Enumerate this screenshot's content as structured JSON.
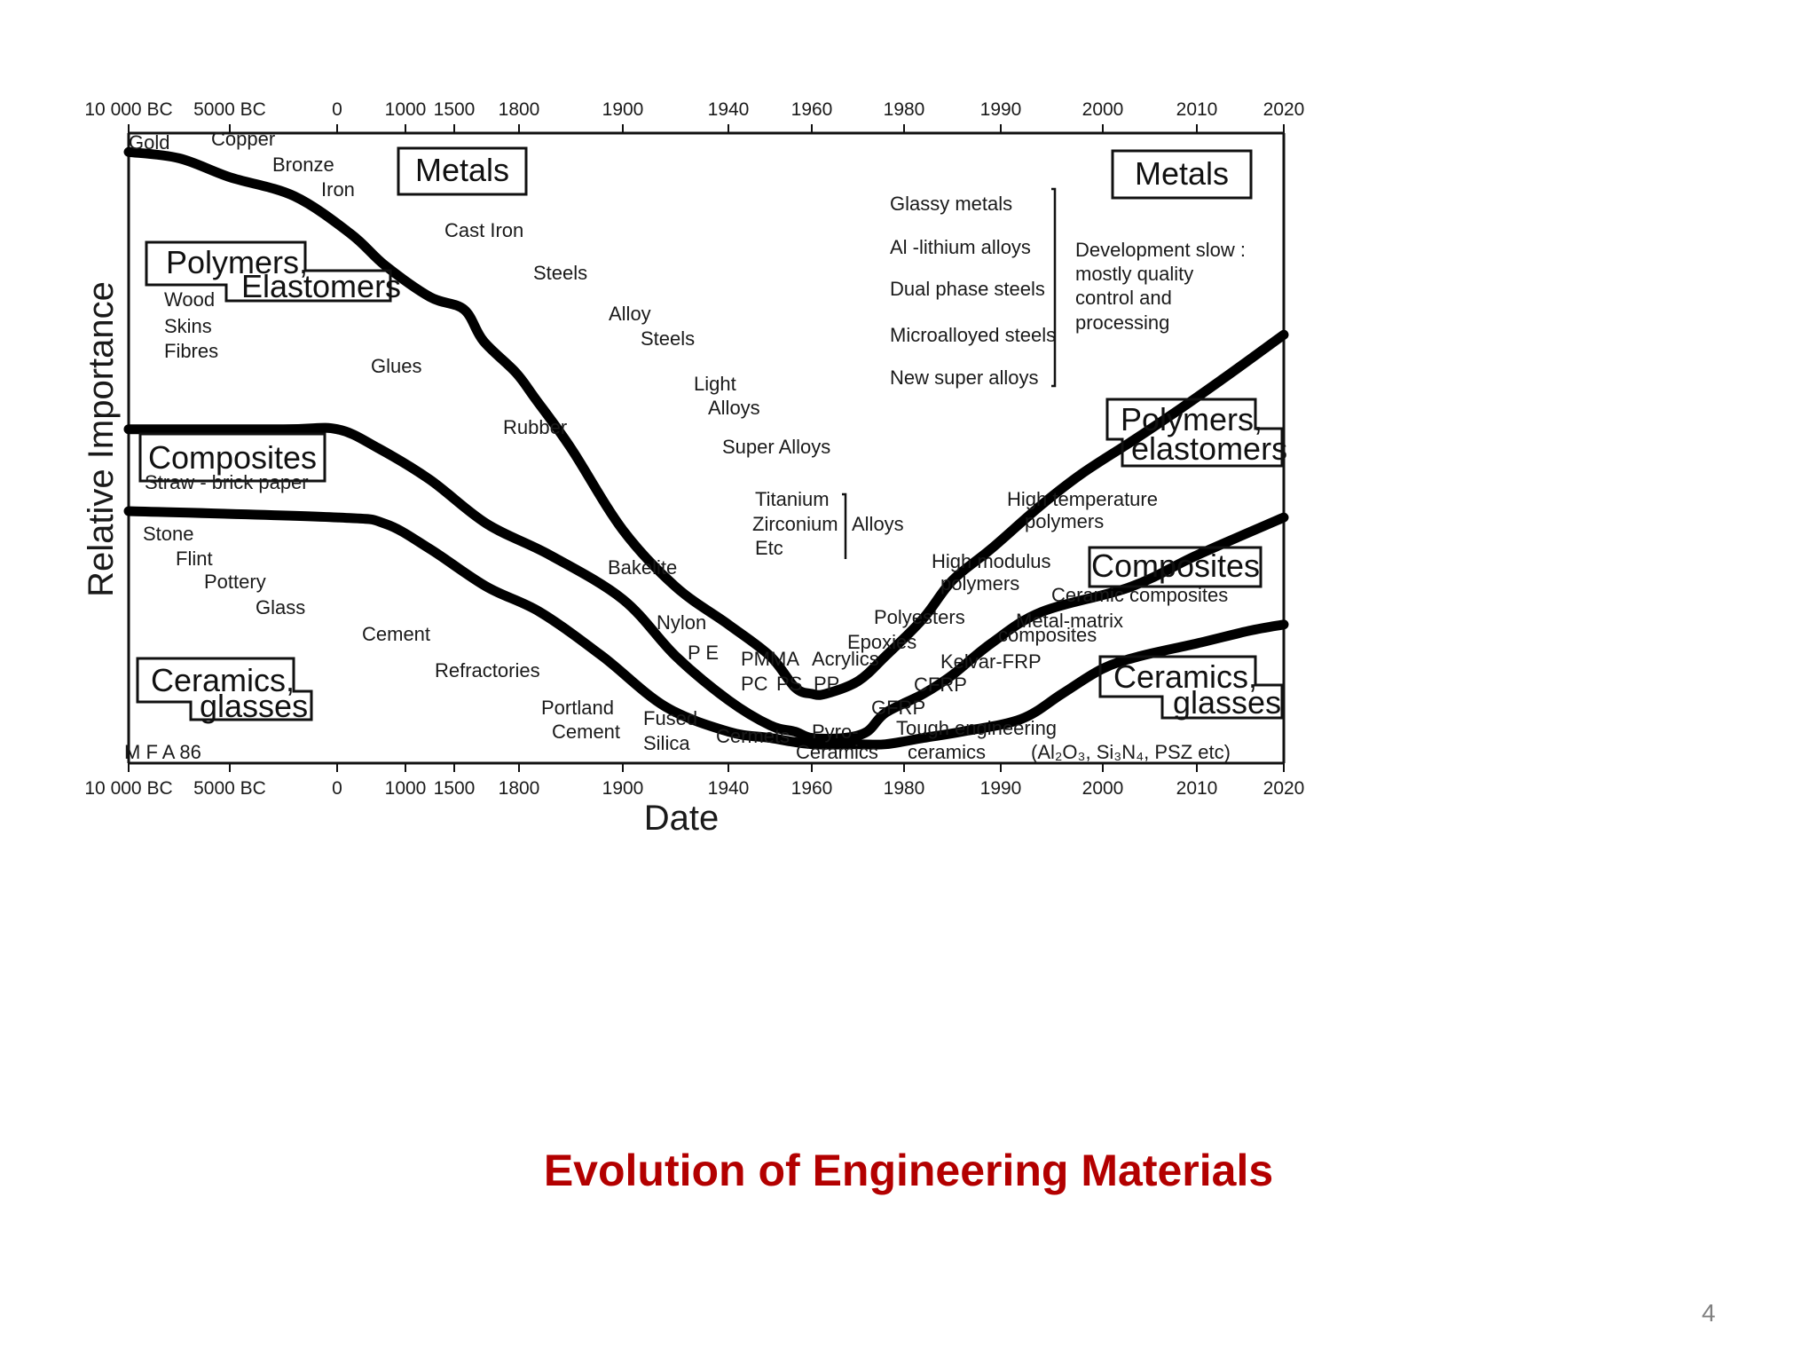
{
  "caption": "Evolution of Engineering Materials",
  "page_number": "4",
  "chart_data": {
    "type": "area",
    "title": "",
    "xlabel": "Date",
    "ylabel": "Relative Importance",
    "x_ticks": [
      "10 000 BC",
      "5000 BC",
      "0",
      "1000",
      "1500",
      "1800",
      "1900",
      "1940",
      "1960",
      "1980",
      "1990",
      "2000",
      "2010",
      "2020"
    ],
    "ylim": [
      0,
      100
    ],
    "grid": false,
    "note": "M F A 86",
    "categories": [
      "Metals",
      "Polymers, elastomers",
      "Composites",
      "Ceramics, glasses"
    ],
    "boundaries": [
      {
        "name": "metals-lower",
        "points": [
          [
            0,
            97
          ],
          [
            0.5,
            96
          ],
          [
            1,
            93
          ],
          [
            1.6,
            90
          ],
          [
            2.2,
            84
          ],
          [
            2.7,
            79
          ],
          [
            3.5,
            74
          ],
          [
            4.15,
            72
          ],
          [
            4.45,
            67
          ],
          [
            4.95,
            62
          ],
          [
            5.15,
            58
          ],
          [
            5.5,
            50
          ],
          [
            6.0,
            37
          ],
          [
            6.5,
            28
          ],
          [
            7.0,
            22
          ],
          [
            7.5,
            17
          ],
          [
            7.8,
            12
          ],
          [
            8.0,
            11
          ],
          [
            8.15,
            11
          ],
          [
            8.5,
            13
          ],
          [
            8.8,
            17
          ],
          [
            9.2,
            23
          ],
          [
            9.5,
            29
          ],
          [
            9.9,
            34
          ],
          [
            10.4,
            41
          ],
          [
            10.8,
            46
          ],
          [
            11.3,
            51
          ],
          [
            11.8,
            56
          ],
          [
            12.3,
            61
          ],
          [
            12.8,
            66
          ],
          [
            13,
            68
          ]
        ]
      },
      {
        "name": "polymers-lower",
        "points": [
          [
            0,
            53
          ],
          [
            1.5,
            53
          ],
          [
            2.0,
            53
          ],
          [
            2.6,
            50
          ],
          [
            3.5,
            45
          ],
          [
            4.5,
            38
          ],
          [
            5.3,
            33
          ],
          [
            6.0,
            26
          ],
          [
            6.5,
            17
          ],
          [
            7.0,
            10
          ],
          [
            7.5,
            6
          ],
          [
            7.8,
            5
          ],
          [
            8.0,
            4
          ],
          [
            8.35,
            4
          ],
          [
            8.6,
            5
          ],
          [
            8.8,
            8
          ],
          [
            9.2,
            11
          ],
          [
            9.5,
            14
          ],
          [
            9.9,
            19
          ],
          [
            10.4,
            24
          ],
          [
            11.3,
            28
          ],
          [
            12.0,
            33
          ],
          [
            13,
            39
          ]
        ]
      },
      {
        "name": "composites-lower",
        "points": [
          [
            0,
            40
          ],
          [
            2.0,
            39
          ],
          [
            2.7,
            38
          ],
          [
            3.5,
            34
          ],
          [
            4.5,
            28
          ],
          [
            5.2,
            24
          ],
          [
            5.8,
            17
          ],
          [
            6.4,
            9
          ],
          [
            7.0,
            5
          ],
          [
            7.5,
            4
          ],
          [
            8.0,
            3
          ],
          [
            8.5,
            3
          ],
          [
            8.8,
            3
          ],
          [
            9.2,
            4
          ],
          [
            9.6,
            5
          ],
          [
            10.2,
            7
          ],
          [
            10.6,
            11
          ],
          [
            11.0,
            15
          ],
          [
            11.4,
            17
          ],
          [
            12.0,
            19
          ],
          [
            12.6,
            21
          ],
          [
            13,
            22
          ]
        ]
      }
    ],
    "category_boxes": [
      {
        "text": "Metals"
      },
      {
        "text": "Polymers,"
      },
      {
        "text": "Elastomers"
      },
      {
        "text": "Composites"
      },
      {
        "text": "Ceramics,"
      },
      {
        "text": "glasses"
      },
      {
        "text": "Metals"
      },
      {
        "text": "Polymers,"
      },
      {
        "text": "elastomers"
      },
      {
        "text": "Composites"
      },
      {
        "text": "Ceramics,"
      },
      {
        "text": "glasses"
      }
    ],
    "annotations": [
      "Gold",
      "Copper",
      "Bronze",
      "Iron",
      "Cast Iron",
      "Steels",
      "Alloy",
      "Steels",
      "Light",
      "Alloys",
      "Super Alloys",
      "Titanium",
      "Zirconium",
      "Etc",
      "Alloys",
      "Wood",
      "Skins",
      "Fibres",
      "Glues",
      "Rubber",
      "Bakelite",
      "Nylon",
      "P E",
      "PMMA",
      "Acrylics",
      "PC",
      "PS",
      "PP",
      "Straw - brick paper",
      "Stone",
      "Flint",
      "Pottery",
      "Glass",
      "Cement",
      "Refractories",
      "Portland",
      "Cement",
      "Fused",
      "Silica",
      "Cermets",
      "Pyro-",
      "Ceramics",
      "Glassy metals",
      "Al -lithium alloys",
      "Dual phase steels",
      "Microalloyed steels",
      "New super alloys",
      "Development slow :",
      "mostly quality",
      "control and",
      "processing",
      "High temperature",
      "polymers",
      "High modulus",
      "polymers",
      "Polyesters",
      "Epoxies",
      "Ceramic composites",
      "Metal-matrix",
      "composites",
      "Kelvar-FRP",
      "CFRP",
      "GFRP",
      "Tough engineering",
      "ceramics",
      "(Al₂O₃, Si₃N₄, PSZ etc)"
    ]
  }
}
